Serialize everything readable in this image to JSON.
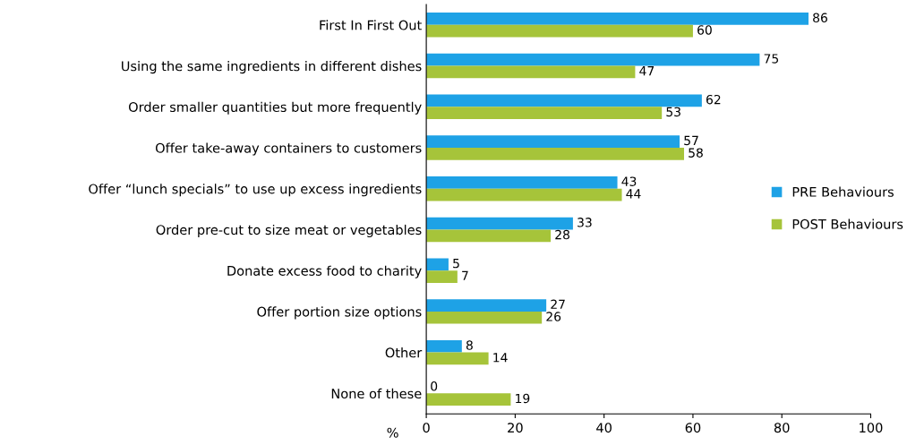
{
  "chart_data": {
    "type": "bar",
    "orientation": "horizontal",
    "xlabel": "%",
    "categories": [
      "First In First Out",
      "Using the same ingredients in different dishes",
      "Order smaller quantities but more frequently",
      "Offer take-away containers to customers",
      "Offer “lunch specials” to use up excess ingredients",
      "Order pre-cut to size meat or vegetables",
      "Donate excess food to charity",
      "Offer portion size options",
      "Other",
      "None of these"
    ],
    "series": [
      {
        "name": "PRE Behaviours",
        "color": "#1ea2e6",
        "values": [
          86,
          75,
          62,
          57,
          43,
          33,
          5,
          27,
          8,
          0
        ]
      },
      {
        "name": "POST Behaviours",
        "color": "#a6c43a",
        "values": [
          60,
          47,
          53,
          58,
          44,
          28,
          7,
          26,
          14,
          19
        ]
      }
    ],
    "xlim": [
      0,
      100
    ],
    "xticks": [
      0,
      20,
      40,
      60,
      80,
      100
    ],
    "data_labels": true,
    "legend": "right",
    "grid": false
  }
}
